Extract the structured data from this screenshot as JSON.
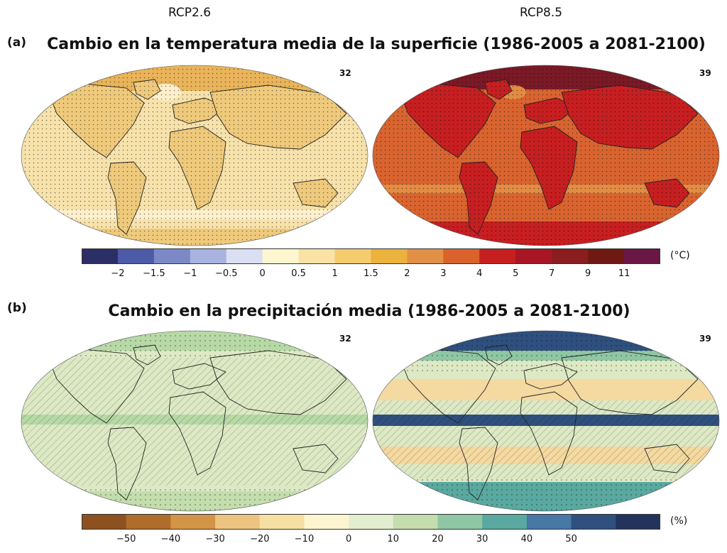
{
  "scenarios": {
    "left": "RCP2.6",
    "right": "RCP8.5"
  },
  "panel_a": {
    "letter": "(a)",
    "title": "Cambio en la temperatura media de la superficie (1986-2005 a 2081-2100)",
    "left_count": "32",
    "right_count": "39",
    "unit": "(°C)",
    "colorbar": {
      "colors": [
        "#2b2f66",
        "#4d5aa8",
        "#7d88c7",
        "#aab3df",
        "#dadff2",
        "#fff6cf",
        "#f9e2a4",
        "#f4cc6d",
        "#ebb23d",
        "#e39047",
        "#d9632b",
        "#c51f1f",
        "#a81624",
        "#8a1d1d",
        "#6e1a12",
        "#6b1745"
      ],
      "ticks": [
        "−2",
        "−1.5",
        "−1",
        "−0.5",
        "0",
        "0.5",
        "1",
        "1.5",
        "2",
        "3",
        "4",
        "5",
        "7",
        "9",
        "11"
      ]
    },
    "left_colors": {
      "ocean": "#f7e2ab",
      "land": "#efca7c",
      "warm": "#e9b45a",
      "cool": "#fff0cc"
    },
    "right_colors": {
      "ocean": "#d9642f",
      "land": "#c71f21",
      "arctic": "#7a1a26",
      "cool": "#e28c44"
    }
  },
  "panel_b": {
    "letter": "(b)",
    "title": "Cambio en la precipitación media (1986-2005 a 2081-2100)",
    "left_count": "32",
    "right_count": "39",
    "unit": "(%)",
    "colorbar": {
      "colors": [
        "#8c511f",
        "#b06c2a",
        "#d49445",
        "#ecc47f",
        "#f6dfa3",
        "#fdf5cf",
        "#e3edcf",
        "#c3ddad",
        "#8fc6a3",
        "#5aa9a0",
        "#4778a6",
        "#2f507e",
        "#23345c"
      ],
      "ticks": [
        "−50",
        "−40",
        "−30",
        "−20",
        "−10",
        "0",
        "10",
        "20",
        "30",
        "40",
        "50"
      ]
    },
    "left_colors": {
      "base": "#dde9c4",
      "wet": "#b7d9a6"
    },
    "right_colors": {
      "base": "#dde9c4",
      "dry": "#f4d9a0",
      "wet": "#8fc6a3",
      "verywet": "#2f507e"
    }
  }
}
